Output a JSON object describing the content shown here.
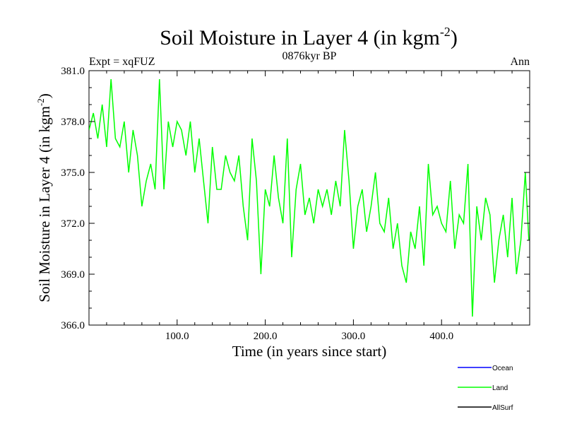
{
  "chart_data": {
    "type": "line",
    "title_main": "Soil Moisture in Layer 4 (in kgm",
    "title_sup": "-2",
    "title_close": ")",
    "subtitle": "0876kyr BP",
    "left_label": "Expt = xqFUZ",
    "right_label": "Ann",
    "xlabel": "Time (in years since start)",
    "ylabel_main": "Soil Moisture in Layer 4 (in kgm",
    "ylabel_sup": "-2",
    "ylabel_close": ")",
    "xlim": [
      0,
      500
    ],
    "ylim": [
      366.0,
      381.0
    ],
    "x_ticks": [
      100,
      200,
      300,
      400
    ],
    "x_tick_labels": [
      "100.0",
      "200.0",
      "300.0",
      "400.0"
    ],
    "y_ticks": [
      366,
      369,
      372,
      375,
      378,
      381
    ],
    "y_tick_labels": [
      "366.0",
      "369.0",
      "372.0",
      "375.0",
      "378.0",
      "381.0"
    ],
    "legend": [
      {
        "name": "Ocean",
        "color": "#0000ff"
      },
      {
        "name": "Land",
        "color": "#00ff00"
      },
      {
        "name": "AllSurf",
        "color": "#000000"
      }
    ],
    "series": [
      {
        "name": "Land",
        "color": "#00ff00",
        "x": [
          0,
          5,
          10,
          15,
          20,
          25,
          30,
          35,
          40,
          45,
          50,
          55,
          60,
          65,
          70,
          75,
          80,
          85,
          90,
          95,
          100,
          105,
          110,
          115,
          120,
          125,
          130,
          135,
          140,
          145,
          150,
          155,
          160,
          165,
          170,
          175,
          180,
          185,
          190,
          195,
          200,
          205,
          210,
          215,
          220,
          225,
          230,
          235,
          240,
          245,
          250,
          255,
          260,
          265,
          270,
          275,
          280,
          285,
          290,
          295,
          300,
          305,
          310,
          315,
          320,
          325,
          330,
          335,
          340,
          345,
          350,
          355,
          360,
          365,
          370,
          375,
          380,
          385,
          390,
          395,
          400,
          405,
          410,
          415,
          420,
          425,
          430,
          435,
          440,
          445,
          450,
          455,
          460,
          465,
          470,
          475,
          480,
          485,
          490,
          495,
          499
        ],
        "values": [
          377.5,
          378.5,
          377.0,
          379.0,
          376.5,
          380.5,
          377.0,
          376.5,
          378.0,
          375.0,
          377.5,
          376.0,
          373.0,
          374.5,
          375.5,
          374.0,
          380.5,
          374.0,
          378.0,
          376.5,
          378.0,
          377.5,
          376.0,
          378.0,
          375.0,
          377.0,
          374.5,
          372.0,
          376.5,
          374.0,
          374.0,
          376.0,
          375.0,
          374.5,
          376.0,
          373.0,
          371.0,
          377.0,
          374.5,
          369.0,
          374.0,
          373.0,
          376.0,
          373.5,
          372.0,
          377.0,
          370.0,
          374.0,
          375.5,
          372.5,
          373.5,
          372.0,
          374.0,
          373.0,
          374.0,
          372.5,
          374.5,
          373.0,
          377.5,
          374.5,
          370.5,
          373.0,
          374.0,
          371.5,
          373.0,
          375.0,
          372.0,
          371.5,
          373.5,
          370.5,
          372.0,
          369.5,
          368.5,
          371.5,
          370.5,
          373.0,
          369.5,
          375.5,
          372.5,
          373.0,
          372.0,
          371.5,
          374.5,
          370.5,
          372.5,
          372.0,
          375.5,
          366.5,
          373.0,
          371.0,
          373.5,
          372.5,
          368.5,
          371.0,
          372.5,
          370.0,
          373.5,
          369.0,
          371.0,
          375.0,
          371.0
        ]
      }
    ]
  }
}
